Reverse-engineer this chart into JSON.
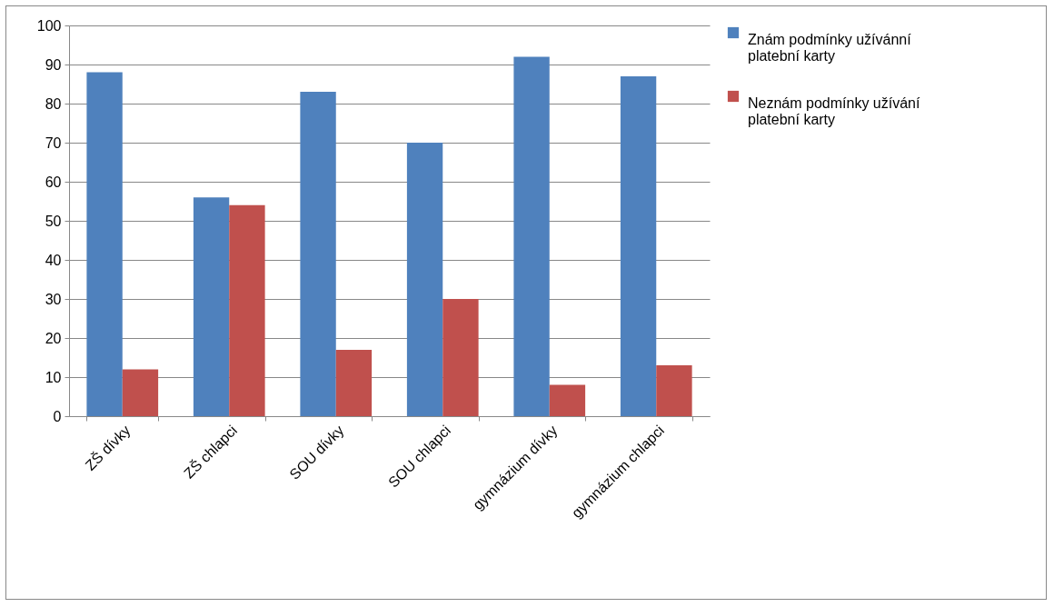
{
  "chart_data": {
    "type": "bar",
    "categories": [
      "ZŠ dívky",
      "ZŠ chlapci",
      "SOU dívky",
      "SOU chlapci",
      "gymnázium dívky",
      "gymnázium chlapci"
    ],
    "series": [
      {
        "name": "Znám podmínky užívánní platební karty",
        "color": "#4f81bd",
        "values": [
          88,
          56,
          83,
          70,
          92,
          87
        ]
      },
      {
        "name": "Neznám podmínky užívání platební karty",
        "color": "#c0504d",
        "values": [
          12,
          54,
          17,
          30,
          8,
          13
        ]
      }
    ],
    "ylim": [
      0,
      100
    ],
    "yticks": [
      0,
      10,
      20,
      30,
      40,
      50,
      60,
      70,
      80,
      90,
      100
    ],
    "grid": "y",
    "legend": "right"
  }
}
